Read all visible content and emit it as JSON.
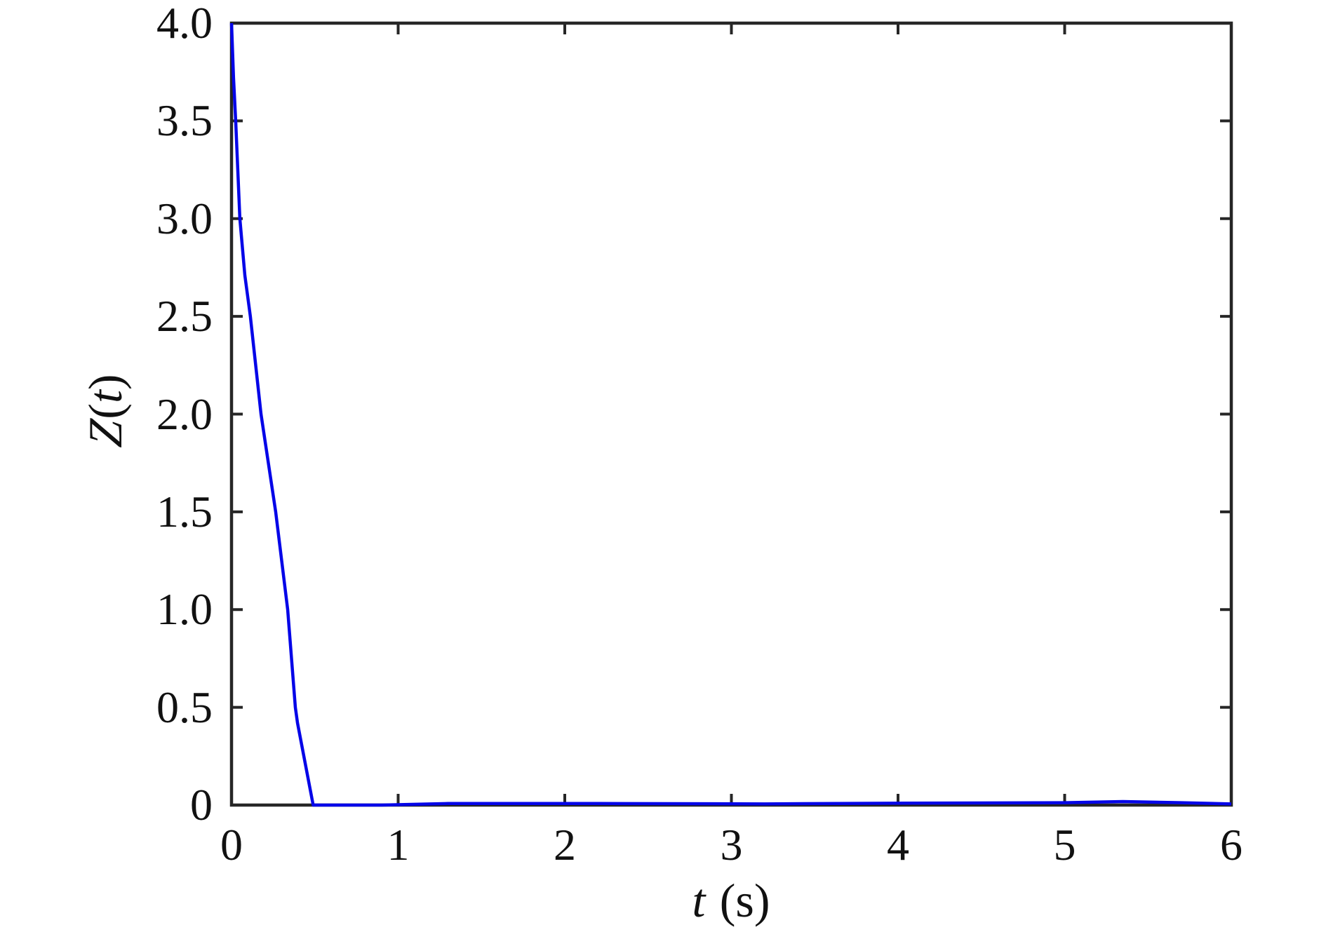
{
  "figure": {
    "background": "#ffffff",
    "ylabel": {
      "symbol": "Z",
      "open": "(",
      "arg": "t",
      "close": ")"
    },
    "xlabel": {
      "symbol": "t",
      "unit": "(s)"
    }
  },
  "chart_data": {
    "type": "line",
    "title": "",
    "xlabel": "t (s)",
    "ylabel": "𝒵(t)",
    "xlim": [
      0,
      6
    ],
    "ylim": [
      0,
      4
    ],
    "x_ticks": [
      0,
      1,
      2,
      3,
      4,
      5,
      6
    ],
    "x_tick_labels": [
      "0",
      "1",
      "2",
      "3",
      "4",
      "5",
      "6"
    ],
    "y_ticks": [
      0,
      0.5,
      1.0,
      1.5,
      2.0,
      2.5,
      3.0,
      3.5,
      4.0
    ],
    "y_tick_labels": [
      "0",
      "0.5",
      "1.0",
      "1.5",
      "2.0",
      "2.5",
      "3.0",
      "3.5",
      "4.0"
    ],
    "grid": false,
    "legend": "none",
    "box": true,
    "tick_direction": "in",
    "line_color": "#0505e8",
    "axis_color": "#262626",
    "series": [
      {
        "name": "Z(t)",
        "points": [
          [
            0.0,
            4.0
          ],
          [
            0.012,
            3.72
          ],
          [
            0.025,
            3.5
          ],
          [
            0.05,
            3.0
          ],
          [
            0.08,
            2.71
          ],
          [
            0.113,
            2.5
          ],
          [
            0.177,
            2.0
          ],
          [
            0.265,
            1.5
          ],
          [
            0.337,
            1.0
          ],
          [
            0.383,
            0.5
          ],
          [
            0.396,
            0.42
          ],
          [
            0.49,
            0.0
          ],
          [
            0.9,
            0.0
          ],
          [
            1.3,
            0.008
          ],
          [
            2.2,
            0.008
          ],
          [
            3.2,
            0.006
          ],
          [
            4.1,
            0.01
          ],
          [
            5.0,
            0.012
          ],
          [
            5.35,
            0.018
          ],
          [
            5.7,
            0.012
          ],
          [
            6.0,
            0.006
          ]
        ]
      }
    ]
  }
}
